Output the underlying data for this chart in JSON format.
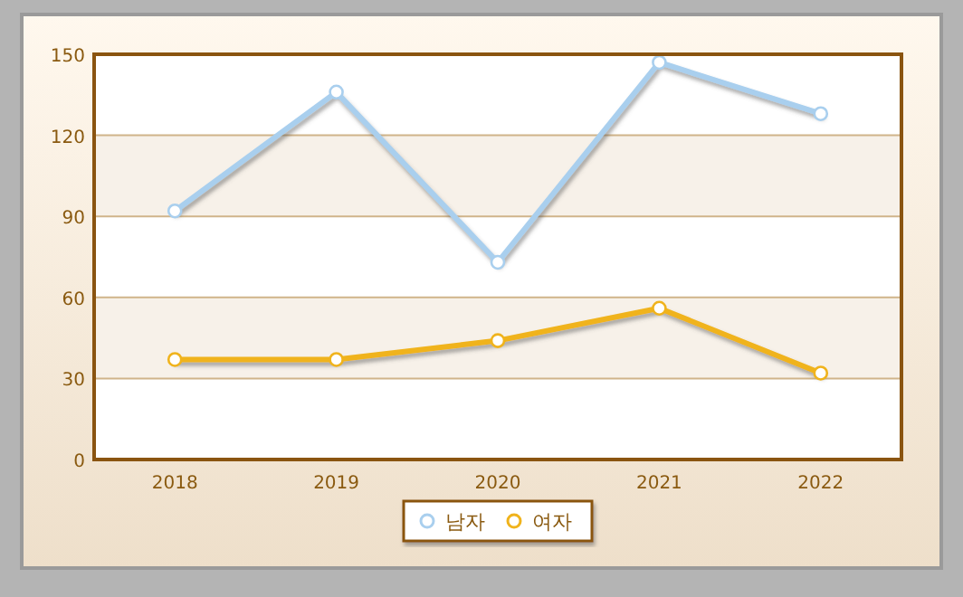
{
  "chart_data": {
    "type": "line",
    "categories": [
      "2018",
      "2019",
      "2020",
      "2021",
      "2022"
    ],
    "series": [
      {
        "name": "남자",
        "color": "#a9cfee",
        "values": [
          92,
          136,
          73,
          147,
          128
        ]
      },
      {
        "name": "여자",
        "color": "#f0b31c",
        "values": [
          37,
          37,
          44,
          56,
          32
        ]
      }
    ],
    "ylim": [
      0,
      150
    ],
    "yticks": [
      0,
      30,
      60,
      90,
      120,
      150
    ],
    "grid": "y",
    "legend": "bottom",
    "marker": "circle",
    "line_style": "solid"
  }
}
